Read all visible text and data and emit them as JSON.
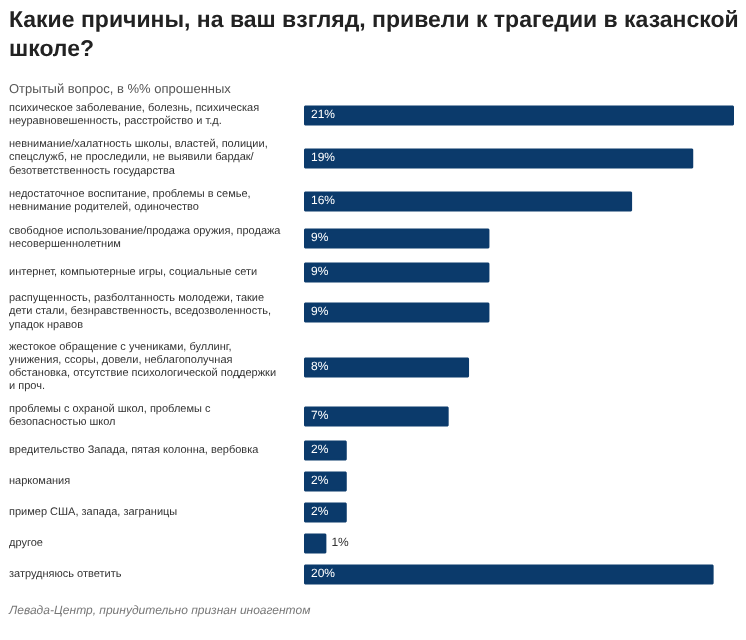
{
  "chart_data": {
    "type": "bar",
    "orientation": "horizontal",
    "title": "Какие причины, на ваш взгляд, привели к трагедии в казанской школе?",
    "subtitle": "Отрытый вопрос, в %% опрошенных",
    "categories": [
      "психическое заболевание, болезнь, психическая неуравновешенность, расстройство и т.д.",
      "невнимание/халатность школы, властей, полиции, спецслужб, не проследили, не выявили бардак/ безответственность государства",
      "недостаточное воспитание, проблемы в семье, невнимание родителей, одиночество",
      "свободное использование/продажа оружия, продажа несовершеннолетним",
      "интернет, компьютерные игры, социальные сети",
      "распущенность, разболтанность молодежи, такие дети стали, безнравственность, вседозволенность, упадок нравов",
      "жестокое обращение с учениками, буллинг, унижения, ссоры, довели, неблагополучная обстановка, отсутствие психологической поддержки и проч.",
      "проблемы с охраной школ, проблемы с безопасностью школ",
      "вредительство Запада, пятая колонна, вербовка",
      "наркомания",
      "пример США, запада, заграницы",
      "другое",
      "затрудняюсь ответить"
    ],
    "values": [
      21,
      19,
      16,
      9,
      9,
      9,
      8,
      7,
      2,
      2,
      2,
      1,
      20
    ],
    "value_labels": [
      "21%",
      "19%",
      "16%",
      "9%",
      "9%",
      "9%",
      "8%",
      "7%",
      "2%",
      "2%",
      "2%",
      "1%",
      "20%"
    ],
    "color": "#0b3a6b",
    "annotations": [
      "Левада-Центр, принудительно признан иноагентом"
    ]
  }
}
